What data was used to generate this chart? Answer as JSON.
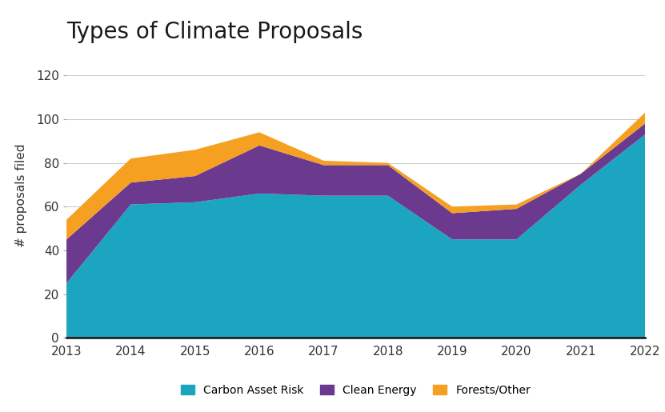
{
  "years": [
    2013,
    2014,
    2015,
    2016,
    2017,
    2018,
    2019,
    2020,
    2021,
    2022
  ],
  "carbon_asset_risk": [
    25,
    61,
    62,
    66,
    65,
    65,
    45,
    45,
    70,
    93
  ],
  "clean_energy": [
    20,
    10,
    12,
    22,
    14,
    14,
    12,
    14,
    5,
    5
  ],
  "forests_other": [
    9,
    11,
    12,
    6,
    2,
    1,
    3,
    2,
    0,
    5
  ],
  "color_carbon": "#1ba5c0",
  "color_clean": "#6b3a8e",
  "color_forests": "#f5a020",
  "title": "Types of Climate Proposals",
  "ylabel": "# proposals filed",
  "ylim": [
    0,
    130
  ],
  "yticks": [
    0,
    20,
    40,
    60,
    80,
    100,
    120
  ],
  "legend_labels": [
    "Carbon Asset Risk",
    "Clean Energy",
    "Forests/Other"
  ],
  "background_color": "#ffffff",
  "title_fontsize": 20,
  "axis_fontsize": 11
}
